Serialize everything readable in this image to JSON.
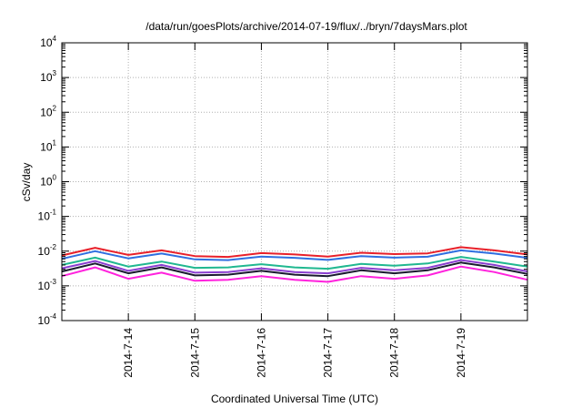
{
  "chart_data": {
    "type": "line",
    "title": "/data/run/goesPlots/archive/2014-07-19/flux/../bryn/7daysMars.plot",
    "xlabel": "Coordinated Universal Time (UTC)",
    "ylabel": "cSv/day",
    "yscale": "log",
    "ylim": [
      0.0001,
      10000
    ],
    "y_ticks": [
      {
        "base": "10",
        "exp": "-4"
      },
      {
        "base": "10",
        "exp": "-3"
      },
      {
        "base": "10",
        "exp": "-2"
      },
      {
        "base": "10",
        "exp": "-1"
      },
      {
        "base": "10",
        "exp": "0"
      },
      {
        "base": "10",
        "exp": "1"
      },
      {
        "base": "10",
        "exp": "2"
      },
      {
        "base": "10",
        "exp": "3"
      },
      {
        "base": "10",
        "exp": "4"
      }
    ],
    "xlim": [
      "2014-07-13 00:00",
      "2014-07-20 00:00"
    ],
    "x_ticks": [
      "2014-7-14",
      "2014-7-15",
      "2014-7-16",
      "2014-7-17",
      "2014-7-18",
      "2014-7-19"
    ],
    "grid": true,
    "x": [
      "2014-07-13 00:00",
      "2014-07-13 12:00",
      "2014-07-14 00:00",
      "2014-07-14 12:00",
      "2014-07-15 00:00",
      "2014-07-15 12:00",
      "2014-07-16 00:00",
      "2014-07-16 12:00",
      "2014-07-17 00:00",
      "2014-07-17 12:00",
      "2014-07-18 00:00",
      "2014-07-18 12:00",
      "2014-07-19 00:00",
      "2014-07-19 12:00",
      "2014-07-20 00:00"
    ],
    "series": [
      {
        "color": "#e8202a",
        "values": [
          0.0075,
          0.0125,
          0.0078,
          0.0105,
          0.0072,
          0.0068,
          0.0088,
          0.008,
          0.007,
          0.009,
          0.0082,
          0.0086,
          0.013,
          0.0105,
          0.008
        ]
      },
      {
        "color": "#2f6fe0",
        "values": [
          0.006,
          0.01,
          0.0062,
          0.0085,
          0.0058,
          0.0055,
          0.007,
          0.0064,
          0.0056,
          0.0072,
          0.0065,
          0.0069,
          0.0105,
          0.0085,
          0.0064
        ]
      },
      {
        "color": "#20b890",
        "values": [
          0.004,
          0.0065,
          0.0036,
          0.005,
          0.0033,
          0.0034,
          0.0042,
          0.0034,
          0.0031,
          0.0043,
          0.0038,
          0.0044,
          0.0068,
          0.005,
          0.0036
        ]
      },
      {
        "color": "#8a3fd0",
        "values": [
          0.0032,
          0.0052,
          0.0027,
          0.004,
          0.0024,
          0.0025,
          0.0032,
          0.0025,
          0.0023,
          0.0033,
          0.0028,
          0.0033,
          0.0055,
          0.004,
          0.0026
        ]
      },
      {
        "color": "#1a1a2e",
        "values": [
          0.0026,
          0.0044,
          0.0023,
          0.0034,
          0.002,
          0.0021,
          0.0027,
          0.0021,
          0.0019,
          0.0028,
          0.0023,
          0.0028,
          0.0047,
          0.0034,
          0.0022
        ]
      },
      {
        "color": "#ff22dd",
        "values": [
          0.0019,
          0.0034,
          0.0016,
          0.0024,
          0.0014,
          0.0015,
          0.0019,
          0.0015,
          0.0013,
          0.0019,
          0.0016,
          0.002,
          0.0036,
          0.0025,
          0.0015
        ]
      }
    ]
  }
}
